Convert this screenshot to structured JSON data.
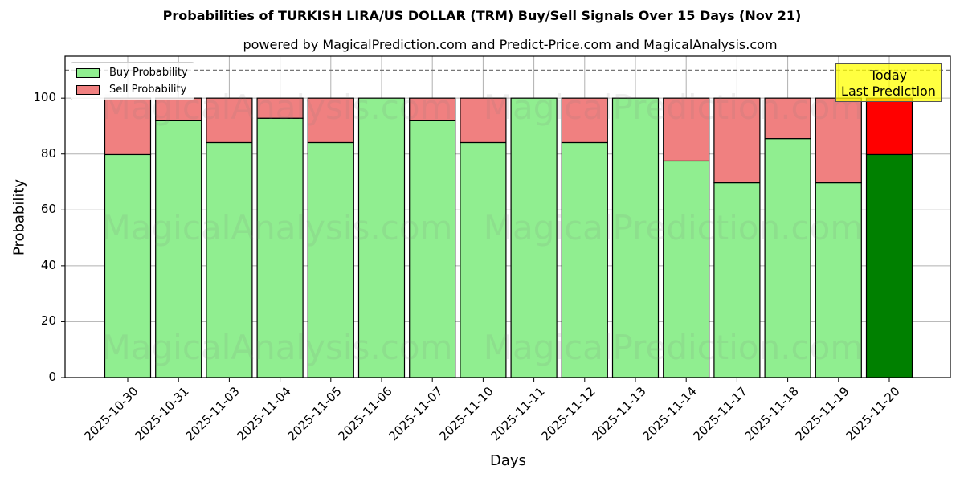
{
  "chart_data": {
    "type": "bar",
    "stacked": true,
    "title": "Probabilities of TURKISH LIRA/US DOLLAR (TRM) Buy/Sell Signals Over 15 Days (Nov 21)",
    "subtitle": "powered by MagicalPrediction.com and Predict-Price.com and MagicalAnalysis.com",
    "xlabel": "Days",
    "ylabel": "Probability",
    "ylim": [
      0,
      115
    ],
    "yticks": [
      0,
      20,
      40,
      60,
      80,
      100
    ],
    "grid": true,
    "legend_position": "upper left",
    "reference_line": {
      "y": 110,
      "style": "dashed"
    },
    "categories": [
      "2025-10-30",
      "2025-10-31",
      "2025-11-03",
      "2025-11-04",
      "2025-11-05",
      "2025-11-06",
      "2025-11-07",
      "2025-11-10",
      "2025-11-11",
      "2025-11-12",
      "2025-11-13",
      "2025-11-14",
      "2025-11-17",
      "2025-11-18",
      "2025-11-19",
      "2025-11-20"
    ],
    "series": [
      {
        "name": "Buy Probability",
        "color": "#90ee90",
        "values": [
          79.8,
          91.9,
          84.1,
          92.8,
          84.1,
          100,
          91.9,
          84.1,
          100,
          84.1,
          100,
          77.5,
          69.7,
          85.5,
          69.7,
          79.8
        ]
      },
      {
        "name": "Sell Probability",
        "color": "#f08080",
        "values": [
          20.2,
          8.1,
          15.9,
          7.2,
          15.9,
          0,
          8.1,
          15.9,
          0,
          15.9,
          0,
          22.5,
          30.3,
          14.5,
          30.3,
          20.2
        ]
      }
    ],
    "highlight": {
      "index": 15,
      "buy_color": "#008000",
      "sell_color": "#ff0000",
      "annotation": "Today\nLast Prediction"
    },
    "watermarks": [
      "MagicalAnalysis.com",
      "MagicalPrediction.com"
    ]
  },
  "legend": {
    "buy": "Buy Probability",
    "sell": "Sell Probability"
  },
  "annotation": {
    "line1": "Today",
    "line2": "Last Prediction"
  }
}
